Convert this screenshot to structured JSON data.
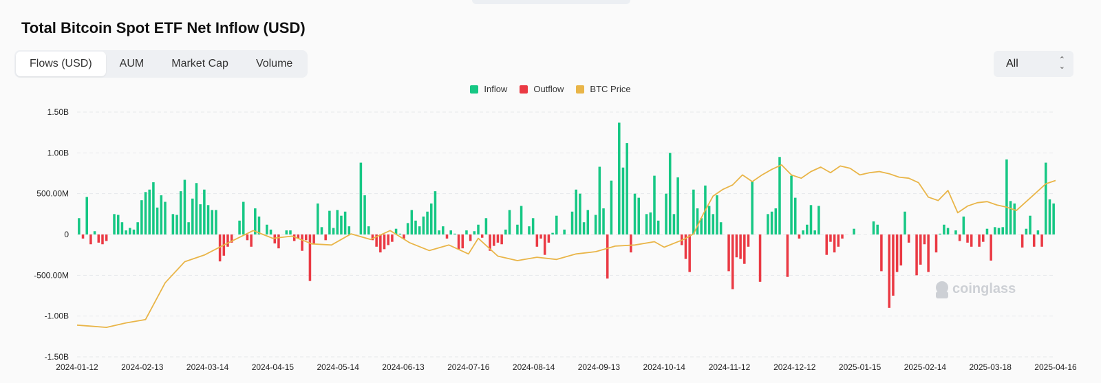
{
  "header": {
    "title": "Total Bitcoin Spot ETF Net Inflow (USD)"
  },
  "tabs": [
    {
      "label": "Flows (USD)",
      "active": true
    },
    {
      "label": "AUM",
      "active": false
    },
    {
      "label": "Market Cap",
      "active": false
    },
    {
      "label": "Volume",
      "active": false
    }
  ],
  "range": {
    "selected": "All"
  },
  "watermark": "coinglass",
  "chart_data": {
    "type": "bar",
    "title": "Total Bitcoin Spot ETF Net Inflow (USD)",
    "legend": [
      {
        "name": "Inflow",
        "color": "#16c784"
      },
      {
        "name": "Outflow",
        "color": "#ea3943"
      },
      {
        "name": "BTC Price",
        "color": "#f0b90b"
      }
    ],
    "legend_position": "top-center",
    "yticks": [
      1.5,
      1.0,
      0.5,
      0,
      -0.5,
      -1.0,
      -1.5
    ],
    "ytick_labels": [
      "1.50B",
      "1.00B",
      "500.00M",
      "0",
      "-500.00M",
      "-1.00B",
      "-1.50B"
    ],
    "ylim": [
      -1.5,
      1.5
    ],
    "yunit": "billion USD",
    "xtick_labels": [
      "2024-01-12",
      "2024-02-13",
      "2024-03-14",
      "2024-04-15",
      "2024-05-14",
      "2024-06-13",
      "2024-07-16",
      "2024-08-14",
      "2024-09-13",
      "2024-10-14",
      "2024-11-12",
      "2024-12-12",
      "2025-01-15",
      "2025-02-14",
      "2025-03-18",
      "2025-04-16"
    ],
    "grid": true,
    "flows": [
      0.2,
      -0.05,
      0.46,
      -0.12,
      0.04,
      -0.1,
      -0.12,
      -0.08,
      0.0,
      0.25,
      0.24,
      0.15,
      0.05,
      0.08,
      0.06,
      0.15,
      0.42,
      0.52,
      0.55,
      0.64,
      0.33,
      0.48,
      0.4,
      0.0,
      0.25,
      0.24,
      0.53,
      0.67,
      0.15,
      0.44,
      0.63,
      0.37,
      0.55,
      0.36,
      0.3,
      0.3,
      -0.33,
      -0.26,
      -0.15,
      -0.1,
      0.0,
      0.17,
      0.4,
      -0.07,
      -0.15,
      0.32,
      0.22,
      0.0,
      0.12,
      0.06,
      -0.11,
      -0.17,
      0.0,
      0.05,
      0.05,
      -0.08,
      -0.05,
      -0.2,
      -0.07,
      -0.57,
      -0.12,
      0.38,
      0.09,
      -0.07,
      0.29,
      0.08,
      0.3,
      0.23,
      0.28,
      0.1,
      0.0,
      0.0,
      0.88,
      0.48,
      0.1,
      -0.07,
      -0.15,
      -0.22,
      -0.18,
      -0.13,
      -0.09,
      0.07,
      0.01,
      -0.05,
      0.14,
      0.3,
      0.17,
      0.1,
      0.22,
      0.28,
      0.38,
      0.53,
      0.05,
      0.1,
      -0.05,
      0.05,
      0.01,
      -0.18,
      -0.17,
      0.05,
      -0.08,
      0.04,
      0.12,
      -0.04,
      0.2,
      -0.2,
      -0.14,
      -0.1,
      -0.12,
      0.06,
      0.3,
      0.0,
      0.12,
      0.35,
      0.0,
      0.1,
      0.2,
      -0.15,
      -0.05,
      -0.25,
      -0.1,
      0.02,
      0.23,
      0.0,
      0.06,
      0.0,
      0.28,
      0.55,
      0.5,
      0.15,
      0.3,
      0.0,
      0.24,
      0.83,
      0.32,
      -0.54,
      0.66,
      0.0,
      1.37,
      0.82,
      1.12,
      -0.22,
      0.5,
      0.45,
      0.0,
      0.25,
      0.27,
      0.72,
      0.17,
      0.0,
      0.5,
      1.0,
      0.25,
      0.7,
      -0.13,
      -0.3,
      -0.46,
      0.55,
      0.32,
      0.2,
      0.6,
      0.35,
      0.25,
      0.48,
      0.15,
      0.0,
      -0.45,
      -0.67,
      -0.28,
      -0.3,
      -0.36,
      -0.15,
      0.65,
      0.0,
      -0.58,
      0.0,
      0.25,
      0.28,
      0.32,
      0.95,
      0.0,
      -0.52,
      0.72,
      0.45,
      -0.05,
      0.05,
      0.12,
      0.36,
      0.05,
      0.35,
      0.0,
      -0.25,
      -0.09,
      -0.22,
      -0.15,
      -0.05,
      0.0,
      0.0,
      0.07,
      0.0,
      0.0,
      0.0,
      0.0,
      0.16,
      0.12,
      -0.45,
      0.0,
      -0.9,
      -0.75,
      -0.46,
      -0.38,
      0.28,
      -0.1,
      0.0,
      -0.5,
      -0.37,
      -0.12,
      -0.46,
      0.0,
      -0.22,
      0.01,
      0.12,
      0.08,
      0.0,
      0.05,
      -0.08,
      0.22,
      -0.1,
      -0.15,
      0.0,
      -0.15,
      -0.09,
      0.07,
      -0.32,
      0.09,
      0.08,
      0.09,
      0.92,
      0.41,
      0.38,
      0.0,
      -0.16,
      0.07,
      0.23,
      -0.15,
      0.05,
      -0.15,
      0.88,
      0.43,
      0.38
    ],
    "btc_price": [
      {
        "x": 0.0,
        "p": 0.1
      },
      {
        "x": 0.03,
        "p": 0.08
      },
      {
        "x": 0.05,
        "p": 0.12
      },
      {
        "x": 0.07,
        "p": 0.15
      },
      {
        "x": 0.09,
        "p": 0.48
      },
      {
        "x": 0.11,
        "p": 0.67
      },
      {
        "x": 0.13,
        "p": 0.73
      },
      {
        "x": 0.15,
        "p": 0.82
      },
      {
        "x": 0.18,
        "p": 0.95
      },
      {
        "x": 0.2,
        "p": 0.88
      },
      {
        "x": 0.22,
        "p": 0.9
      },
      {
        "x": 0.24,
        "p": 0.83
      },
      {
        "x": 0.26,
        "p": 0.82
      },
      {
        "x": 0.28,
        "p": 0.92
      },
      {
        "x": 0.3,
        "p": 0.87
      },
      {
        "x": 0.32,
        "p": 0.95
      },
      {
        "x": 0.34,
        "p": 0.84
      },
      {
        "x": 0.36,
        "p": 0.77
      },
      {
        "x": 0.38,
        "p": 0.82
      },
      {
        "x": 0.4,
        "p": 0.74
      },
      {
        "x": 0.41,
        "p": 0.88
      },
      {
        "x": 0.43,
        "p": 0.72
      },
      {
        "x": 0.45,
        "p": 0.68
      },
      {
        "x": 0.47,
        "p": 0.71
      },
      {
        "x": 0.49,
        "p": 0.69
      },
      {
        "x": 0.51,
        "p": 0.74
      },
      {
        "x": 0.53,
        "p": 0.76
      },
      {
        "x": 0.55,
        "p": 0.81
      },
      {
        "x": 0.57,
        "p": 0.82
      },
      {
        "x": 0.59,
        "p": 0.85
      },
      {
        "x": 0.6,
        "p": 0.8
      },
      {
        "x": 0.62,
        "p": 0.87
      },
      {
        "x": 0.63,
        "p": 0.92
      },
      {
        "x": 0.64,
        "p": 1.1
      },
      {
        "x": 0.65,
        "p": 1.26
      },
      {
        "x": 0.66,
        "p": 1.32
      },
      {
        "x": 0.67,
        "p": 1.36
      },
      {
        "x": 0.68,
        "p": 1.45
      },
      {
        "x": 0.69,
        "p": 1.39
      },
      {
        "x": 0.7,
        "p": 1.45
      },
      {
        "x": 0.71,
        "p": 1.5
      },
      {
        "x": 0.72,
        "p": 1.54
      },
      {
        "x": 0.73,
        "p": 1.45
      },
      {
        "x": 0.74,
        "p": 1.42
      },
      {
        "x": 0.75,
        "p": 1.48
      },
      {
        "x": 0.76,
        "p": 1.52
      },
      {
        "x": 0.77,
        "p": 1.47
      },
      {
        "x": 0.78,
        "p": 1.53
      },
      {
        "x": 0.79,
        "p": 1.51
      },
      {
        "x": 0.8,
        "p": 1.45
      },
      {
        "x": 0.81,
        "p": 1.47
      },
      {
        "x": 0.82,
        "p": 1.48
      },
      {
        "x": 0.83,
        "p": 1.46
      },
      {
        "x": 0.84,
        "p": 1.43
      },
      {
        "x": 0.85,
        "p": 1.42
      },
      {
        "x": 0.86,
        "p": 1.38
      },
      {
        "x": 0.87,
        "p": 1.25
      },
      {
        "x": 0.88,
        "p": 1.22
      },
      {
        "x": 0.89,
        "p": 1.31
      },
      {
        "x": 0.9,
        "p": 1.11
      },
      {
        "x": 0.91,
        "p": 1.17
      },
      {
        "x": 0.92,
        "p": 1.2
      },
      {
        "x": 0.93,
        "p": 1.21
      },
      {
        "x": 0.94,
        "p": 1.18
      },
      {
        "x": 0.95,
        "p": 1.16
      },
      {
        "x": 0.96,
        "p": 1.13
      },
      {
        "x": 0.97,
        "p": 1.21
      },
      {
        "x": 0.98,
        "p": 1.29
      },
      {
        "x": 0.99,
        "p": 1.37
      },
      {
        "x": 1.0,
        "p": 1.4
      }
    ]
  }
}
